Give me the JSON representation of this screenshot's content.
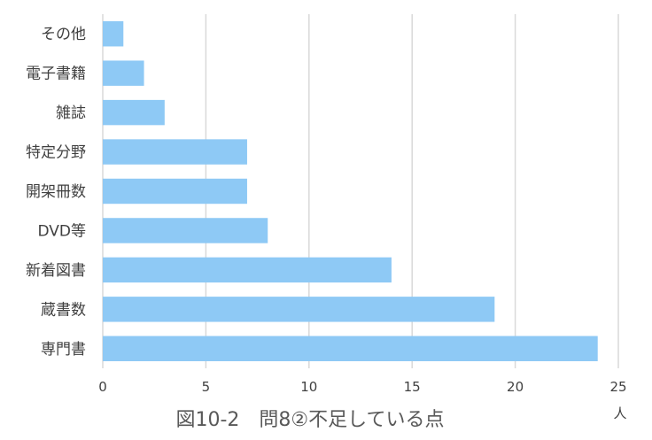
{
  "chart_data": {
    "type": "bar",
    "orientation": "horizontal",
    "categories": [
      "その他",
      "電子書籍",
      "雑誌",
      "特定分野",
      "開架冊数",
      "DVD等",
      "新着図書",
      "蔵書数",
      "専門書"
    ],
    "values": [
      1,
      2,
      3,
      7,
      7,
      8,
      14,
      19,
      24
    ],
    "xlim": [
      0,
      25
    ],
    "xticks": [
      "0",
      "5",
      "10",
      "15",
      "20",
      "25"
    ],
    "x_unit": "人",
    "title": "図10-2　問8②不足している点",
    "grid": true,
    "bar_color": "#8ec9f5",
    "grid_color": "#d9d9d9"
  }
}
